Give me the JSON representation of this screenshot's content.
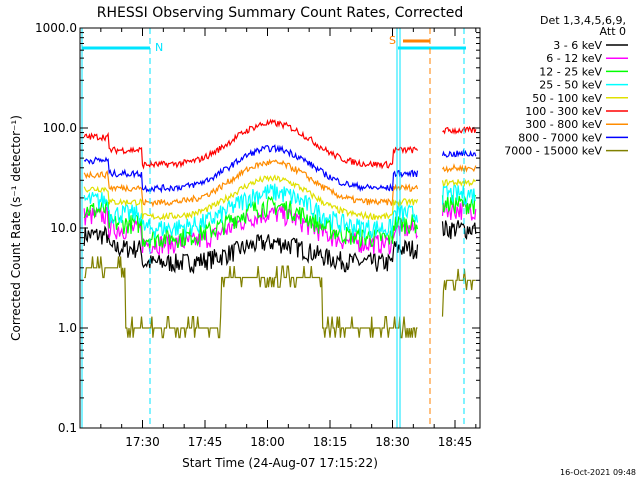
{
  "chart_data": {
    "type": "line",
    "title": "RHESSI Observing Summary Count Rates, Corrected",
    "xlabel": "Start Time (24-Aug-07 17:15:22)",
    "ylabel": "Corrected Count Rate (s⁻¹ detector⁻¹)",
    "y_scale": "log",
    "ylim": [
      0.1,
      1000
    ],
    "xlim_minutes": [
      17.25,
      18.85
    ],
    "x_tick_labels": [
      "17:30",
      "17:45",
      "18:00",
      "18:15",
      "18:30",
      "18:45"
    ],
    "y_tick_labels": [
      "0.1",
      "1.0",
      "10.0",
      "100.0",
      "1000.0"
    ],
    "legend_header": [
      "Det 1,3,4,5,6,9,",
      "Att 0"
    ],
    "legend_placement": "right",
    "timestamp": "16-Oct-2021 09:48",
    "annotations": [
      {
        "text": "N"
      },
      {
        "text": "S"
      }
    ],
    "series": [
      {
        "name": "3 - 6 keV",
        "color": "#000000"
      },
      {
        "name": "6 - 12 keV",
        "color": "#ff00ff"
      },
      {
        "name": "12 - 25 keV",
        "color": "#00ff00"
      },
      {
        "name": "25 - 50 keV",
        "color": "#00ffff"
      },
      {
        "name": "50 - 100 keV",
        "color": "#e0e000"
      },
      {
        "name": "100 - 300 keV",
        "color": "#ff0000"
      },
      {
        "name": "300 - 800 keV",
        "color": "#ff8c00"
      },
      {
        "name": "800 - 7000 keV",
        "color": "#0000ff"
      },
      {
        "name": "7000 - 15000 keV",
        "color": "#808000"
      }
    ]
  }
}
